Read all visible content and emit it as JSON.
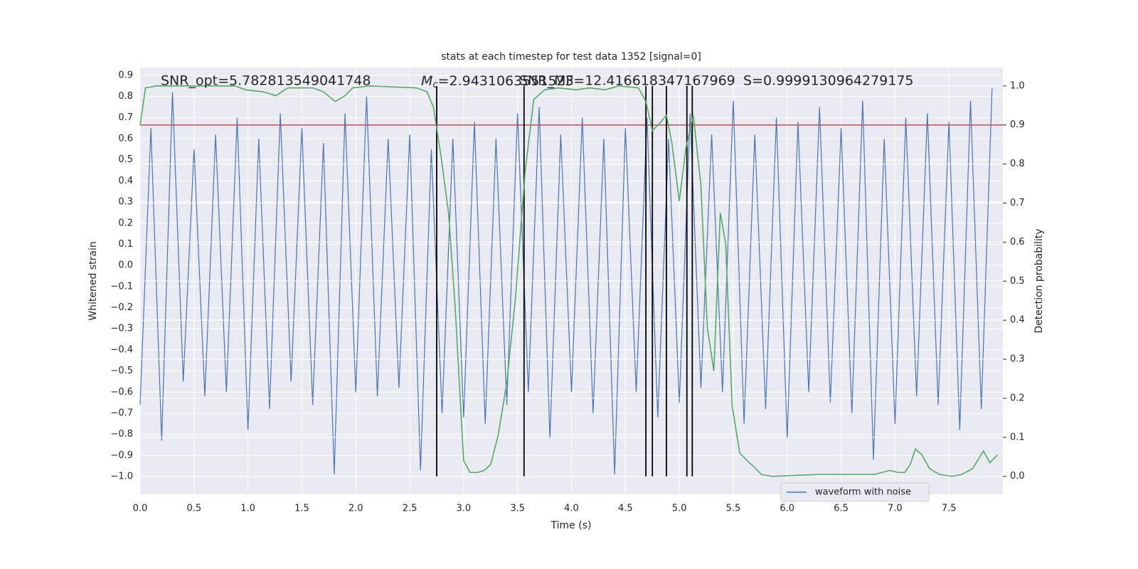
{
  "chart_data": {
    "type": "line",
    "title": "stats at each timestep for test data 1352 [signal=0]",
    "x_label": "Time (s)",
    "y_label": "Whitened strain",
    "y2_label": "Detection probability",
    "grid": true,
    "legend": "lower right",
    "xlim": [
      0,
      8
    ],
    "xticks": [
      {
        "value": 0,
        "label": "0.0"
      },
      0.5,
      {
        "value": 1,
        "label": "1.0"
      },
      1.5,
      {
        "value": 2,
        "label": "2.0"
      },
      2.5,
      {
        "value": 3,
        "label": "3.0"
      },
      3.5,
      {
        "value": 4,
        "label": "4.0"
      },
      4.5,
      {
        "value": 5,
        "label": "5.0"
      },
      5.5,
      {
        "value": 6,
        "label": "6.0"
      },
      6.5,
      {
        "value": 7,
        "label": "7.0"
      },
      7.5
    ],
    "ylim": [
      -1.084,
      0.937
    ],
    "yticks": [
      {
        "value": -1.0,
        "label": "−1.0"
      },
      {
        "value": -0.9,
        "label": "−0.9"
      },
      {
        "value": -0.8,
        "label": "−0.8"
      },
      {
        "value": -0.7,
        "label": "−0.7"
      },
      {
        "value": -0.6,
        "label": "−0.6"
      },
      {
        "value": -0.5,
        "label": "−0.5"
      },
      {
        "value": -0.4,
        "label": "−0.4"
      },
      {
        "value": -0.3,
        "label": "−0.3"
      },
      {
        "value": -0.2,
        "label": "−0.2"
      },
      {
        "value": -0.1,
        "label": "−0.1"
      },
      {
        "value": 0,
        "label": "0.0"
      },
      0.1,
      0.2,
      0.3,
      0.4,
      0.5,
      0.6,
      0.7,
      0.8,
      0.9
    ],
    "y2lim": [
      -0.046,
      1.047
    ],
    "y2ticks": [
      {
        "value": 0,
        "label": "0.0"
      },
      0.1,
      0.2,
      0.3,
      0.4,
      0.5,
      0.6,
      0.7,
      0.8,
      0.9,
      {
        "value": 1,
        "label": "1.0"
      }
    ],
    "series": [
      {
        "name": "waveform with noise",
        "color": "#4c72b0",
        "axis": "y",
        "x": [
          0.0,
          0.1,
          0.2,
          0.3,
          0.4,
          0.5,
          0.6,
          0.7,
          0.8,
          0.9,
          1.0,
          1.1,
          1.2,
          1.3,
          1.4,
          1.5,
          1.6,
          1.7,
          1.8,
          1.9,
          2.0,
          2.1,
          2.2,
          2.3,
          2.4,
          2.5,
          2.6,
          2.7,
          2.8,
          2.9,
          3.0,
          3.1,
          3.2,
          3.3,
          3.4,
          3.5,
          3.6,
          3.7,
          3.8,
          3.9,
          4.0,
          4.1,
          4.2,
          4.3,
          4.4,
          4.5,
          4.6,
          4.7,
          4.8,
          4.9,
          5.0,
          5.1,
          5.2,
          5.3,
          5.4,
          5.5,
          5.6,
          5.7,
          5.8,
          5.9,
          6.0,
          6.1,
          6.2,
          6.3,
          6.4,
          6.5,
          6.6,
          6.7,
          6.8,
          6.9,
          7.0,
          7.1,
          7.2,
          7.3,
          7.4,
          7.5,
          7.6,
          7.7,
          7.8,
          7.9
        ],
        "values": [
          -0.66,
          0.65,
          -0.83,
          0.82,
          -0.55,
          0.55,
          -0.62,
          0.62,
          -0.6,
          0.7,
          -0.78,
          0.6,
          -0.68,
          0.72,
          -0.55,
          0.65,
          -0.66,
          0.58,
          -0.99,
          0.72,
          -0.6,
          0.8,
          -0.62,
          0.6,
          -0.58,
          0.62,
          -0.97,
          0.55,
          -0.7,
          0.6,
          -0.72,
          0.68,
          -0.75,
          0.6,
          -0.66,
          0.72,
          -0.6,
          0.75,
          -0.82,
          0.62,
          -0.6,
          0.7,
          -0.7,
          0.6,
          -0.99,
          0.65,
          -0.6,
          0.7,
          -0.72,
          0.6,
          -0.65,
          0.72,
          -0.58,
          0.62,
          -0.6,
          0.78,
          -0.75,
          0.62,
          -0.68,
          0.7,
          -0.82,
          0.68,
          -0.6,
          0.75,
          -0.65,
          0.65,
          -0.7,
          0.78,
          -0.92,
          0.6,
          -0.75,
          0.7,
          -0.62,
          0.72,
          -0.66,
          0.68,
          -0.78,
          0.78,
          -0.68,
          0.84
        ]
      },
      {
        "color": "#55a868",
        "axis": "y2",
        "x": [
          0.0,
          0.05,
          0.15,
          0.88,
          0.98,
          1.14,
          1.26,
          1.37,
          1.6,
          1.7,
          1.81,
          1.9,
          1.97,
          2.13,
          2.56,
          2.66,
          2.72,
          2.79,
          2.86,
          2.92,
          3.0,
          3.06,
          3.13,
          3.19,
          3.25,
          3.32,
          3.4,
          3.48,
          3.57,
          3.65,
          3.75,
          3.88,
          4.04,
          4.17,
          4.31,
          4.44,
          4.62,
          4.69,
          4.75,
          4.82,
          4.88,
          4.93,
          5.0,
          5.06,
          5.13,
          5.2,
          5.26,
          5.32,
          5.38,
          5.43,
          5.49,
          5.56,
          5.63,
          5.69,
          5.76,
          5.86,
          6.29,
          6.62,
          6.81,
          6.95,
          7.03,
          7.09,
          7.14,
          7.19,
          7.25,
          7.32,
          7.41,
          7.53,
          7.62,
          7.72,
          7.82,
          7.88,
          7.95
        ],
        "values": [
          0.9,
          0.995,
          1.0,
          1.0,
          0.99,
          0.985,
          0.975,
          0.995,
          0.995,
          0.985,
          0.96,
          0.975,
          0.995,
          1.0,
          0.995,
          0.985,
          0.945,
          0.82,
          0.675,
          0.44,
          0.04,
          0.01,
          0.01,
          0.015,
          0.03,
          0.105,
          0.24,
          0.455,
          0.78,
          0.965,
          0.99,
          0.995,
          0.99,
          0.995,
          0.99,
          1.0,
          0.995,
          0.96,
          0.885,
          0.905,
          0.925,
          0.855,
          0.705,
          0.84,
          0.925,
          0.745,
          0.38,
          0.27,
          0.675,
          0.595,
          0.18,
          0.06,
          0.04,
          0.025,
          0.005,
          0.0,
          0.005,
          0.005,
          0.005,
          0.015,
          0.01,
          0.01,
          0.03,
          0.07,
          0.055,
          0.02,
          0.005,
          0.0,
          0.005,
          0.02,
          0.065,
          0.035,
          0.055
        ]
      }
    ],
    "threshold": {
      "value": 0.9,
      "axis": "y2",
      "color": "#c44e52"
    },
    "vlines": {
      "x": [
        2.75,
        3.56,
        4.69,
        4.75,
        4.88,
        5.07,
        5.12
      ],
      "ymin": 0,
      "ymax": 1,
      "axis": "y2",
      "color": "#000000"
    },
    "annotations": [
      {
        "text": "SNR_opt=5.782813549041748"
      },
      {
        "symbol": "M",
        "subscript": "c",
        "text": "=2.9431063551523"
      },
      {
        "text": "SNR_MF=12.416618347167969"
      },
      {
        "text": "S=0.9999130964279175"
      }
    ]
  }
}
